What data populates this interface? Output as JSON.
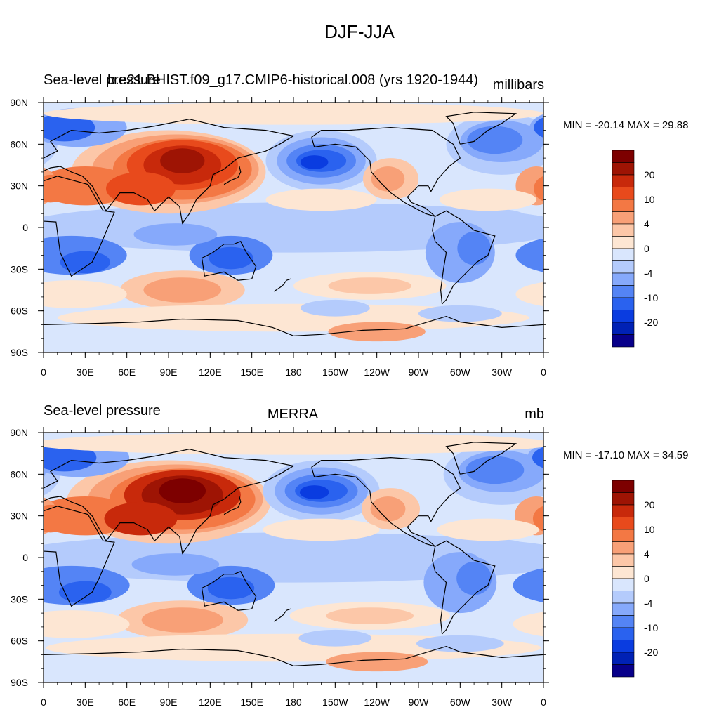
{
  "title": "DJF-JJA",
  "colors": {
    "levels": [
      "#08008a",
      "#0021b5",
      "#0a3ce0",
      "#2a62ef",
      "#5484f5",
      "#86a9fb",
      "#b4cbfc",
      "#d9e6fd",
      "#fde6d3",
      "#fcc7a8",
      "#f8a077",
      "#f37844",
      "#e84a1c",
      "#c8290b",
      "#9e1404",
      "#7d0000"
    ],
    "coastline": "#000000",
    "axis": "#000000"
  },
  "axes": {
    "lat_labels": [
      "90N",
      "60N",
      "30N",
      "0",
      "30S",
      "60S",
      "90S"
    ],
    "lon_labels": [
      "0",
      "30E",
      "60E",
      "90E",
      "120E",
      "150E",
      "180",
      "150W",
      "120W",
      "90W",
      "60W",
      "30W",
      "0"
    ]
  },
  "colorbar": {
    "labels": [
      "20",
      "10",
      "4",
      "0",
      "-4",
      "-10",
      "-20"
    ]
  },
  "panels": [
    {
      "left_label": "Sea-level pressure",
      "center_label": "b.e21.BHIST.f09_g17.CMIP6-historical.008 (yrs 1920-1944)",
      "right_label": "millibars",
      "minmax": "MIN = -20.14  MAX =  29.88"
    },
    {
      "left_label": "Sea-level pressure",
      "center_label": "MERRA",
      "right_label": "mb",
      "minmax": "MIN = -17.10  MAX =  34.59"
    }
  ]
}
